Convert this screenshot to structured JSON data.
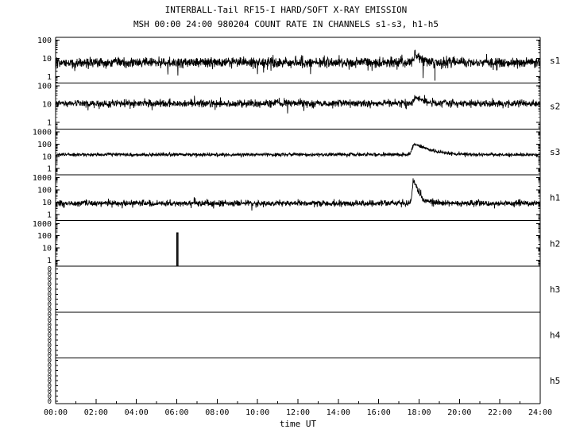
{
  "title": "INTERBALL-Tail RF15-I HARD/SOFT X-RAY EMISSION",
  "subtitle": "MSH 00:00 24:00 980204  COUNT RATE IN CHANNELS s1-s3, h1-h5",
  "chart_data": {
    "type": "line",
    "title": "INTERBALL-Tail RF15-I HARD/SOFT X-RAY EMISSION",
    "subtitle": "MSH 00:00 24:00 980204  COUNT RATE IN CHANNELS s1-s3, h1-h5",
    "xlabel": "time UT",
    "x_range_hours": [
      0,
      24
    ],
    "x_tick_labels": [
      "00:00",
      "02:00",
      "04:00",
      "06:00",
      "08:00",
      "10:00",
      "12:00",
      "14:00",
      "16:00",
      "18:00",
      "20:00",
      "22:00",
      "24:00"
    ],
    "y_scale": "log",
    "grid": false,
    "legend": "none",
    "samples": 1900,
    "observation": {
      "mission": "INTERBALL-Tail",
      "instrument": "RF15-I",
      "mode": "MSH",
      "date": "980204",
      "start": "00:00",
      "end": "24:00",
      "channels": "s1-s3, h1-h5"
    },
    "events": [
      {
        "time_hour": 17.7,
        "channels": [
          "s1",
          "s2",
          "s3",
          "h1"
        ],
        "description": "solar/magnetospheric X-ray burst near 17:40-18:00, strongest in s3 and h1"
      },
      {
        "time_hour": 6.0,
        "channels": [
          "h2"
        ],
        "description": "single narrow count-rate spike near 06:00 reaching ~170 counts"
      }
    ],
    "panels": [
      {
        "label": "s1",
        "ylog": [
          -0.35,
          2.15
        ],
        "yticks": [
          1,
          10,
          100
        ],
        "baseline": 6,
        "sigma": 0.14,
        "seed": 101,
        "flare": {
          "peak": 17.8,
          "rise": 0.06,
          "decay": 0.25,
          "amp": 3
        },
        "rand_down": {
          "p": 0.005,
          "mult": 3.5
        },
        "dropouts": [
          {
            "hour": 18.78,
            "value": 0.6
          }
        ]
      },
      {
        "label": "s2",
        "ylog": [
          -0.35,
          2.15
        ],
        "yticks": [
          1,
          10,
          100
        ],
        "baseline": 11,
        "sigma": 0.1,
        "seed": 202,
        "flare": {
          "peak": 17.8,
          "rise": 0.06,
          "decay": 0.3,
          "amp": 2.6
        },
        "rand_down": {
          "p": 0.004,
          "mult": 3
        }
      },
      {
        "label": "s3",
        "ylog": [
          -0.5,
          3.25
        ],
        "yticks": [
          1,
          10,
          100,
          1000
        ],
        "baseline": 14,
        "sigma": 0.07,
        "seed": 303,
        "flare": {
          "peak": 17.72,
          "rise": 0.05,
          "decay": 0.55,
          "amp": 8
        },
        "rand_down": {
          "p": 0.003,
          "mult": 2.5
        }
      },
      {
        "label": "h1",
        "ylog": [
          -0.5,
          3.25
        ],
        "yticks": [
          1,
          10,
          100,
          1000
        ],
        "baseline": 8,
        "sigma": 0.12,
        "seed": 404,
        "flare": {
          "peak": 17.7,
          "rise": 0.025,
          "decay": 0.12,
          "amp": 45
        },
        "tail": {
          "amp": 2.2,
          "decay": 0.5
        },
        "rand_up": {
          "p": 0.004,
          "mult": 3.2
        },
        "rand_down": {
          "p": 0.003,
          "mult": 3
        }
      },
      {
        "label": "h2",
        "ylog": [
          -0.5,
          3.25
        ],
        "yticks": [
          1,
          10,
          100,
          1000
        ],
        "spikes": [
          {
            "hour": 6.03,
            "value": 170
          }
        ]
      },
      {
        "label": "h3",
        "zero_ticks": 9
      },
      {
        "label": "h4",
        "zero_ticks": 9
      },
      {
        "label": "h5",
        "zero_ticks": 9
      }
    ]
  }
}
